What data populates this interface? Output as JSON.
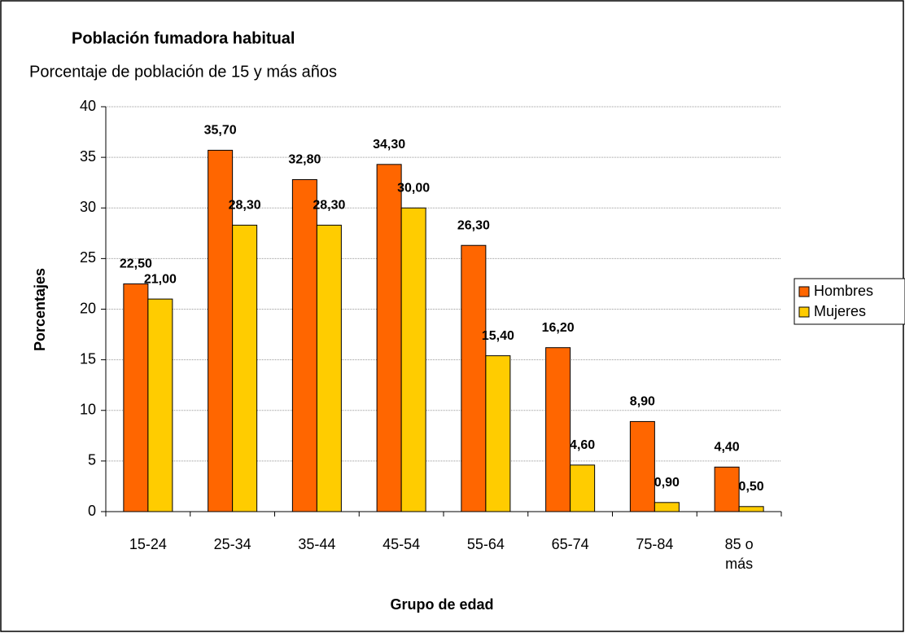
{
  "chart_data": {
    "type": "bar",
    "title": "Población fumadora habitual",
    "subtitle": "Porcentaje de población de 15 y más años",
    "xlabel": "Grupo de edad",
    "ylabel": "Porcentajes",
    "categories": [
      "15-24",
      "25-34",
      "35-44",
      "45-54",
      "55-64",
      "65-74",
      "75-84",
      "85 o más"
    ],
    "series": [
      {
        "name": "Hombres",
        "color": "#ff6600",
        "values": [
          22.5,
          35.7,
          32.8,
          34.3,
          26.3,
          16.2,
          8.9,
          4.4
        ],
        "value_labels": [
          "22,50",
          "35,70",
          "32,80",
          "34,30",
          "26,30",
          "16,20",
          "8,90",
          "4,40"
        ]
      },
      {
        "name": "Mujeres",
        "color": "#ffcc00",
        "values": [
          21.0,
          28.3,
          28.3,
          30.0,
          15.4,
          4.6,
          0.9,
          0.5
        ],
        "value_labels": [
          "21,00",
          "28,30",
          "28,30",
          "30,00",
          "15,40",
          "4,60",
          "0,90",
          "0,50"
        ]
      }
    ],
    "ylim": [
      0,
      40
    ],
    "yticks": [
      0,
      5,
      10,
      15,
      20,
      25,
      30,
      35,
      40
    ],
    "grid": true,
    "legend": "right"
  }
}
